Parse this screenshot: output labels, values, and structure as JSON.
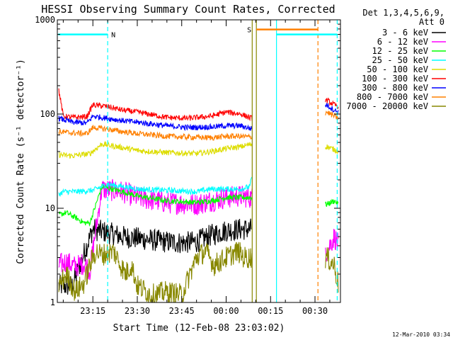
{
  "chart_data": {
    "type": "line",
    "title": "HESSI Observing Summary Count Rates, Corrected",
    "xlabel": "Start Time (12-Feb-08 23:03:02)",
    "ylabel": "Corrected Count Rate (s⁻¹ detector⁻¹)",
    "yscale": "log",
    "ylim": [
      1,
      1000
    ],
    "xlim_minutes_after_23_00": [
      3.0,
      98.6
    ],
    "x_ticks": [
      {
        "label": "23:15",
        "minutes": 15
      },
      {
        "label": "23:30",
        "minutes": 30
      },
      {
        "label": "23:45",
        "minutes": 45
      },
      {
        "label": "00:00",
        "minutes": 60
      },
      {
        "label": "00:15",
        "minutes": 75
      },
      {
        "label": "00:30",
        "minutes": 90
      }
    ],
    "y_ticks": [
      {
        "label": "1",
        "value": 1
      },
      {
        "label": "10",
        "value": 10
      },
      {
        "label": "100",
        "value": 100
      },
      {
        "label": "1000",
        "value": 1000
      }
    ],
    "legend_header": [
      "Det 1,3,4,5,6,9,",
      "Att 0"
    ],
    "legend_position": "right",
    "series": [
      {
        "name": "3 - 6 keV",
        "color": "#000000",
        "x": [
          3.5,
          8,
          15,
          20,
          25,
          30,
          35,
          40,
          45,
          50,
          55,
          60,
          65,
          68.5,
          93,
          96.5,
          98
        ],
        "y": [
          1.5,
          1.5,
          6,
          5.5,
          5,
          4.8,
          4.6,
          4.4,
          4.3,
          4.4,
          5.2,
          5.8,
          6,
          6,
          null,
          null,
          null
        ]
      },
      {
        "name": "6 - 12 keV",
        "color": "#ff00ff",
        "x": [
          3.5,
          6,
          9,
          12,
          14,
          18,
          25,
          30,
          40,
          50,
          55,
          60,
          65,
          68.5,
          94,
          96.5,
          98
        ],
        "y": [
          2.5,
          2.7,
          2.4,
          2.6,
          2.2,
          16,
          15,
          13,
          11.5,
          11,
          12,
          13,
          13.5,
          13,
          3.5,
          5,
          4
        ]
      },
      {
        "name": "12 - 25 keV",
        "color": "#00ff00",
        "x": [
          3.5,
          6,
          9,
          12,
          14,
          18,
          25,
          30,
          40,
          50,
          55,
          60,
          65,
          68.5,
          94,
          96.5,
          98
        ],
        "y": [
          8.5,
          9,
          8,
          7,
          7,
          17,
          15,
          13.5,
          12,
          11.5,
          12,
          13,
          13,
          13,
          11,
          12,
          11
        ]
      },
      {
        "name": "25 - 50 keV",
        "color": "#00ffff",
        "x": [
          3.5,
          5,
          10,
          15,
          20,
          25,
          30,
          40,
          50,
          55,
          60,
          65,
          68,
          69
        ],
        "y": [
          14,
          15,
          15,
          15.5,
          18,
          17,
          16,
          15.5,
          15,
          16,
          16,
          16,
          17,
          24
        ]
      },
      {
        "name": "50 - 100 keV",
        "color": "#dddd00",
        "x": [
          3.5,
          8,
          14,
          18,
          25,
          30,
          40,
          50,
          55,
          60,
          65,
          68.5,
          94,
          96.5,
          98
        ],
        "y": [
          37,
          36,
          38,
          48,
          44,
          41,
          39,
          38,
          40,
          43,
          45,
          48,
          45,
          42,
          40
        ]
      },
      {
        "name": "100 - 300 keV",
        "color": "#ff0000",
        "x": [
          3.5,
          5,
          8,
          13,
          15,
          20,
          25,
          30,
          40,
          47,
          55,
          60,
          65,
          68.5,
          94,
          96.5,
          98
        ],
        "y": [
          180,
          95,
          92,
          94,
          125,
          120,
          110,
          105,
          92,
          90,
          95,
          105,
          100,
          90,
          140,
          125,
          120
        ]
      },
      {
        "name": "300 - 800 keV",
        "color": "#0000ff",
        "x": [
          3.5,
          8,
          13,
          15,
          20,
          25,
          30,
          40,
          47,
          55,
          60,
          65,
          68.5,
          94,
          96.5,
          98
        ],
        "y": [
          90,
          82,
          80,
          95,
          90,
          85,
          82,
          75,
          72,
          73,
          75,
          75,
          70,
          125,
          110,
          105
        ]
      },
      {
        "name": "800 - 7000 keV",
        "color": "#ff8000",
        "x": [
          3.5,
          8,
          13,
          15,
          20,
          25,
          30,
          40,
          47,
          55,
          60,
          65,
          68.5,
          94,
          96.5,
          98
        ],
        "y": [
          65,
          63,
          62,
          72,
          69,
          65,
          62,
          58,
          57,
          56,
          58,
          58,
          57,
          105,
          95,
          90
        ]
      },
      {
        "name": "7000 - 20000 keV",
        "color": "#888800",
        "x": [
          3.5,
          6,
          9,
          12,
          14,
          16,
          18,
          22,
          26,
          28,
          30,
          35,
          40,
          45,
          50,
          53,
          56,
          60,
          64,
          66,
          68.5,
          94,
          96.5,
          98
        ],
        "y": [
          1.5,
          2,
          1.3,
          1.6,
          2.5,
          3.5,
          3.2,
          3.5,
          2,
          2.5,
          1.5,
          1.2,
          1.3,
          1.2,
          3,
          3.5,
          2.5,
          3,
          3.5,
          3,
          3,
          3,
          2.5,
          1.5
        ]
      }
    ],
    "intervals": [
      {
        "label": "N",
        "color": "#00ffff",
        "y_level": 700,
        "x_start": 3.3,
        "x_end": 20.0
      },
      {
        "label": "S",
        "color": "#ff8000",
        "y_level": 790,
        "x_start": 70.2,
        "x_end": 91.0
      }
    ],
    "vertical_lines": [
      {
        "color": "#00ffff",
        "dashed": true,
        "x": 20.0
      },
      {
        "color": "#888800",
        "dashed": false,
        "x": 68.8
      },
      {
        "color": "#888800",
        "dashed": false,
        "x": 70.2
      },
      {
        "color": "#00ffff",
        "dashed": false,
        "x": 77.0
      },
      {
        "color": "#ff8000",
        "dashed": true,
        "x": 91.0
      },
      {
        "color": "#00ffff",
        "dashed": true,
        "x": 97.5
      }
    ],
    "secondary_intervals": [
      {
        "color": "#00ffff",
        "y_level": 700,
        "x_start": 77.0,
        "x_end": 97.5
      }
    ],
    "footer_date": "12-Mar-2010 03:34"
  }
}
